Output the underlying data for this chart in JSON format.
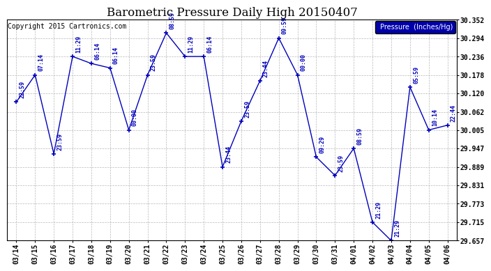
{
  "title": "Barometric Pressure Daily High 20150407",
  "copyright": "Copyright 2015 Cartronics.com",
  "legend_label": "Pressure  (Inches/Hg)",
  "ylim": [
    29.657,
    30.352
  ],
  "yticks": [
    29.657,
    29.715,
    29.773,
    29.831,
    29.889,
    29.947,
    30.005,
    30.062,
    30.12,
    30.178,
    30.236,
    30.294,
    30.352
  ],
  "background_color": "#ffffff",
  "grid_color": "#b0b0b0",
  "line_color": "#0000bb",
  "text_color": "#0000bb",
  "categories": [
    "03/14",
    "03/15",
    "03/16",
    "03/17",
    "03/18",
    "03/19",
    "03/20",
    "03/21",
    "03/22",
    "03/23",
    "03/24",
    "03/25",
    "03/26",
    "03/27",
    "03/28",
    "03/29",
    "03/30",
    "03/31",
    "04/01",
    "04/02",
    "04/03",
    "04/04",
    "04/05",
    "04/06"
  ],
  "y_values": [
    30.093,
    30.178,
    29.93,
    30.236,
    30.214,
    30.2,
    30.005,
    30.178,
    30.31,
    30.236,
    30.236,
    29.889,
    30.033,
    30.16,
    30.294,
    30.178,
    29.92,
    29.862,
    29.947,
    29.715,
    29.657,
    30.14,
    30.005,
    30.02
  ],
  "point_labels": [
    "22:59",
    "07:14",
    "23:59",
    "11:29",
    "06:14",
    "06:14",
    "00:00",
    "23:59",
    "08:59",
    "11:29",
    "06:14",
    "23:44",
    "23:59",
    "23:44",
    "09:59",
    "00:00",
    "09:29",
    "23:59",
    "08:59",
    "21:29",
    "21:29",
    "05:59",
    "10:14",
    "22:44"
  ],
  "title_fontsize": 12,
  "copyright_fontsize": 7,
  "tick_fontsize": 7,
  "label_fontsize": 6,
  "legend_fontsize": 7
}
